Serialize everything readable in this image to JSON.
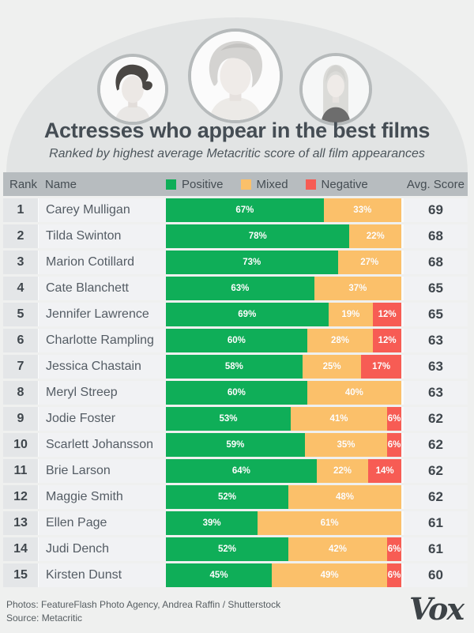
{
  "page": {
    "title": "Actresses who appear in the best films",
    "subtitle": "Ranked by highest average Metacritic score of all film appearances"
  },
  "table": {
    "rank_header": "Rank",
    "name_header": "Name",
    "score_header": "Avg. Score"
  },
  "legend": {
    "positive": "Positive",
    "mixed": "Mixed",
    "negative": "Negative"
  },
  "colors": {
    "positive": "#0fae58",
    "mixed": "#fbc06a",
    "negative": "#f75c54",
    "header_bg": "#b7bcbf",
    "dome": "#e2e4e4",
    "page_bg": "#eff0ef"
  },
  "chart_data": {
    "type": "bar",
    "stacked": true,
    "orientation": "horizontal",
    "unit": "percent",
    "xlim": [
      0,
      100
    ],
    "title": "Actresses who appear in the best films",
    "subtitle": "Ranked by highest average Metacritic score of all film appearances",
    "ranks": [
      1,
      2,
      3,
      4,
      5,
      6,
      7,
      8,
      9,
      10,
      11,
      12,
      13,
      14,
      15
    ],
    "categories": [
      "Carey Mulligan",
      "Tilda Swinton",
      "Marion Cotillard",
      "Cate Blanchett",
      "Jennifer Lawrence",
      "Charlotte Rampling",
      "Jessica Chastain",
      "Meryl Streep",
      "Jodie Foster",
      "Scarlett Johansson",
      "Brie Larson",
      "Maggie Smith",
      "Ellen Page",
      "Judi Dench",
      "Kirsten Dunst"
    ],
    "series": [
      {
        "name": "Positive",
        "color": "#0fae58",
        "values": [
          67,
          78,
          73,
          63,
          69,
          60,
          58,
          60,
          53,
          59,
          64,
          52,
          39,
          52,
          45
        ]
      },
      {
        "name": "Mixed",
        "color": "#fbc06a",
        "values": [
          33,
          22,
          27,
          37,
          19,
          28,
          25,
          40,
          41,
          35,
          22,
          48,
          61,
          42,
          49
        ]
      },
      {
        "name": "Negative",
        "color": "#f75c54",
        "values": [
          0,
          0,
          0,
          0,
          12,
          12,
          17,
          0,
          6,
          6,
          14,
          0,
          0,
          6,
          6
        ]
      }
    ],
    "avg_scores": [
      69,
      68,
      68,
      65,
      65,
      63,
      63,
      63,
      62,
      62,
      62,
      62,
      61,
      61,
      60
    ]
  },
  "footer": {
    "credit": "Photos: FeatureFlash Photo Agency, Andrea Raffin / Shutterstock",
    "source": "Source: Metacritic",
    "logo": "Vox"
  }
}
